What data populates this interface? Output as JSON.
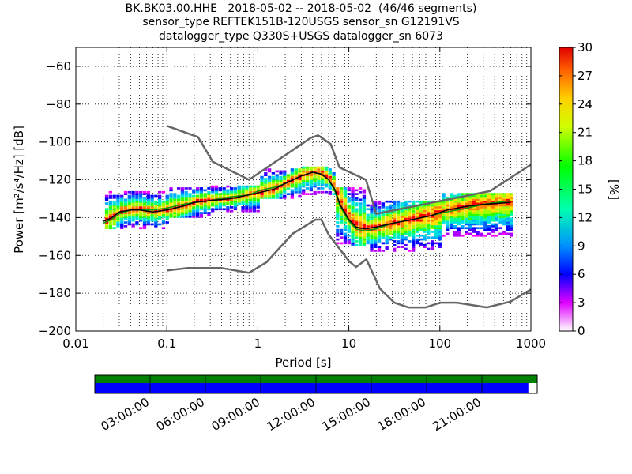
{
  "title_lines": [
    "BK.BK03.00.HHE   2018-05-02 -- 2018-05-02  (46/46 segments)",
    "sensor_type REFTEK151B-120USGS sensor_sn G12191VS",
    "datalogger_type Q330S+USGS datalogger_sn 6073"
  ],
  "chart_data": {
    "type": "heatmap",
    "xlabel": "Period [s]",
    "ylabel": "Power [m²/s⁴/Hz] [dB]",
    "xscale": "log",
    "xlim": [
      0.01,
      1000
    ],
    "ylim": [
      -200,
      -50
    ],
    "xticks": [
      0.01,
      0.1,
      1,
      10,
      100,
      1000
    ],
    "xtick_labels": [
      "0.01",
      "0.1",
      "1",
      "10",
      "100",
      "1000"
    ],
    "yticks": [
      -200,
      -180,
      -160,
      -140,
      -120,
      -100,
      -80,
      -60
    ],
    "ytick_labels": [
      "−200",
      "−180",
      "−160",
      "−140",
      "−120",
      "−100",
      "−80",
      "−60"
    ],
    "grid": "dotted",
    "colorbar": {
      "label": "[%]",
      "range": [
        0,
        30
      ],
      "ticks": [
        0,
        3,
        6,
        9,
        12,
        15,
        18,
        21,
        24,
        27,
        30
      ],
      "tick_labels": [
        "0",
        "3",
        "6",
        "9",
        "12",
        "15",
        "18",
        "21",
        "24",
        "27",
        "30"
      ]
    },
    "mode_curve": [
      [
        0.02,
        -142
      ],
      [
        0.025,
        -140
      ],
      [
        0.03,
        -137
      ],
      [
        0.04,
        -136
      ],
      [
        0.05,
        -136
      ],
      [
        0.07,
        -137
      ],
      [
        0.1,
        -136
      ],
      [
        0.15,
        -134
      ],
      [
        0.2,
        -132
      ],
      [
        0.3,
        -131
      ],
      [
        0.5,
        -130
      ],
      [
        0.8,
        -128
      ],
      [
        1.0,
        -127
      ],
      [
        1.5,
        -125
      ],
      [
        2.0,
        -122
      ],
      [
        3.0,
        -118
      ],
      [
        4.0,
        -116
      ],
      [
        5.0,
        -117
      ],
      [
        6.0,
        -120
      ],
      [
        7.0,
        -125
      ],
      [
        8.0,
        -133
      ],
      [
        10.0,
        -141
      ],
      [
        12.0,
        -145
      ],
      [
        15.0,
        -146
      ],
      [
        20.0,
        -145
      ],
      [
        30.0,
        -143
      ],
      [
        50.0,
        -141
      ],
      [
        80.0,
        -139
      ],
      [
        120.0,
        -136
      ],
      [
        200.0,
        -134
      ],
      [
        300.0,
        -133
      ],
      [
        600.0,
        -132
      ]
    ],
    "mean_curve": [
      [
        0.02,
        -143
      ],
      [
        0.025,
        -141
      ],
      [
        0.03,
        -138
      ],
      [
        0.04,
        -136
      ],
      [
        0.05,
        -136
      ],
      [
        0.07,
        -136
      ],
      [
        0.1,
        -135
      ],
      [
        0.15,
        -133
      ],
      [
        0.2,
        -132
      ],
      [
        0.3,
        -131
      ],
      [
        0.5,
        -129
      ],
      [
        0.8,
        -128
      ],
      [
        1.0,
        -126
      ],
      [
        1.5,
        -124
      ],
      [
        2.0,
        -122
      ],
      [
        3.0,
        -118
      ],
      [
        4.0,
        -116
      ],
      [
        5.0,
        -117
      ],
      [
        6.0,
        -120
      ],
      [
        7.0,
        -126
      ],
      [
        8.0,
        -134
      ],
      [
        10.0,
        -142
      ],
      [
        12.0,
        -146
      ],
      [
        15.0,
        -147
      ],
      [
        20.0,
        -146
      ],
      [
        30.0,
        -143
      ],
      [
        50.0,
        -141
      ],
      [
        80.0,
        -139
      ],
      [
        120.0,
        -137
      ],
      [
        200.0,
        -135
      ],
      [
        300.0,
        -133
      ],
      [
        600.0,
        -131
      ]
    ],
    "nhnm": [
      [
        0.1,
        -91.5
      ],
      [
        0.22,
        -97.4
      ],
      [
        0.32,
        -110.5
      ],
      [
        0.8,
        -120
      ],
      [
        3.8,
        -97.9
      ],
      [
        4.6,
        -96.5
      ],
      [
        6.3,
        -101
      ],
      [
        7.9,
        -113.5
      ],
      [
        15.4,
        -120
      ],
      [
        20,
        -138
      ],
      [
        354.8,
        -126
      ],
      [
        1000,
        -112
      ]
    ],
    "nlnm": [
      [
        0.1,
        -168
      ],
      [
        0.17,
        -166.7
      ],
      [
        0.4,
        -166.7
      ],
      [
        0.8,
        -169.2
      ],
      [
        1.24,
        -163.7
      ],
      [
        2.4,
        -148.6
      ],
      [
        4.3,
        -141.1
      ],
      [
        5.0,
        -141.1
      ],
      [
        6.0,
        -149
      ],
      [
        10.0,
        -163
      ],
      [
        12.0,
        -166.2
      ],
      [
        15.6,
        -162.1
      ],
      [
        21.9,
        -177.5
      ],
      [
        31.6,
        -185
      ],
      [
        45,
        -187.5
      ],
      [
        70,
        -187.5
      ],
      [
        101,
        -185
      ],
      [
        154,
        -185
      ],
      [
        328,
        -187.5
      ],
      [
        600,
        -184.4
      ],
      [
        1000,
        -178
      ]
    ],
    "density_bands": [
      {
        "period": [
          0.02,
          0.1
        ],
        "low": -146,
        "high": -127
      },
      {
        "period": [
          0.1,
          0.3
        ],
        "low": -140,
        "high": -124
      },
      {
        "period": [
          0.3,
          1.0
        ],
        "low": -137,
        "high": -124
      },
      {
        "period": [
          1.0,
          3.0
        ],
        "low": -130,
        "high": -115
      },
      {
        "period": [
          3.0,
          7.0
        ],
        "low": -128,
        "high": -114
      },
      {
        "period": [
          7.0,
          15.0
        ],
        "low": -155,
        "high": -125
      },
      {
        "period": [
          15.0,
          100.0
        ],
        "low": -158,
        "high": -132
      },
      {
        "period": [
          100.0,
          700.0
        ],
        "low": -150,
        "high": -128
      }
    ]
  },
  "time_axis": {
    "tick_labels": [
      "03:00:00",
      "06:00:00",
      "09:00:00",
      "12:00:00",
      "15:00:00",
      "18:00:00",
      "21:00:00"
    ],
    "data_coverage": 1.0,
    "gap_coverage": 0.98
  },
  "colors": {
    "mode_line": "#000000",
    "mean_line": "#00a000",
    "model_lines": "#666666",
    "coverage_top": "#008000",
    "coverage_bottom": "#0000ff"
  }
}
